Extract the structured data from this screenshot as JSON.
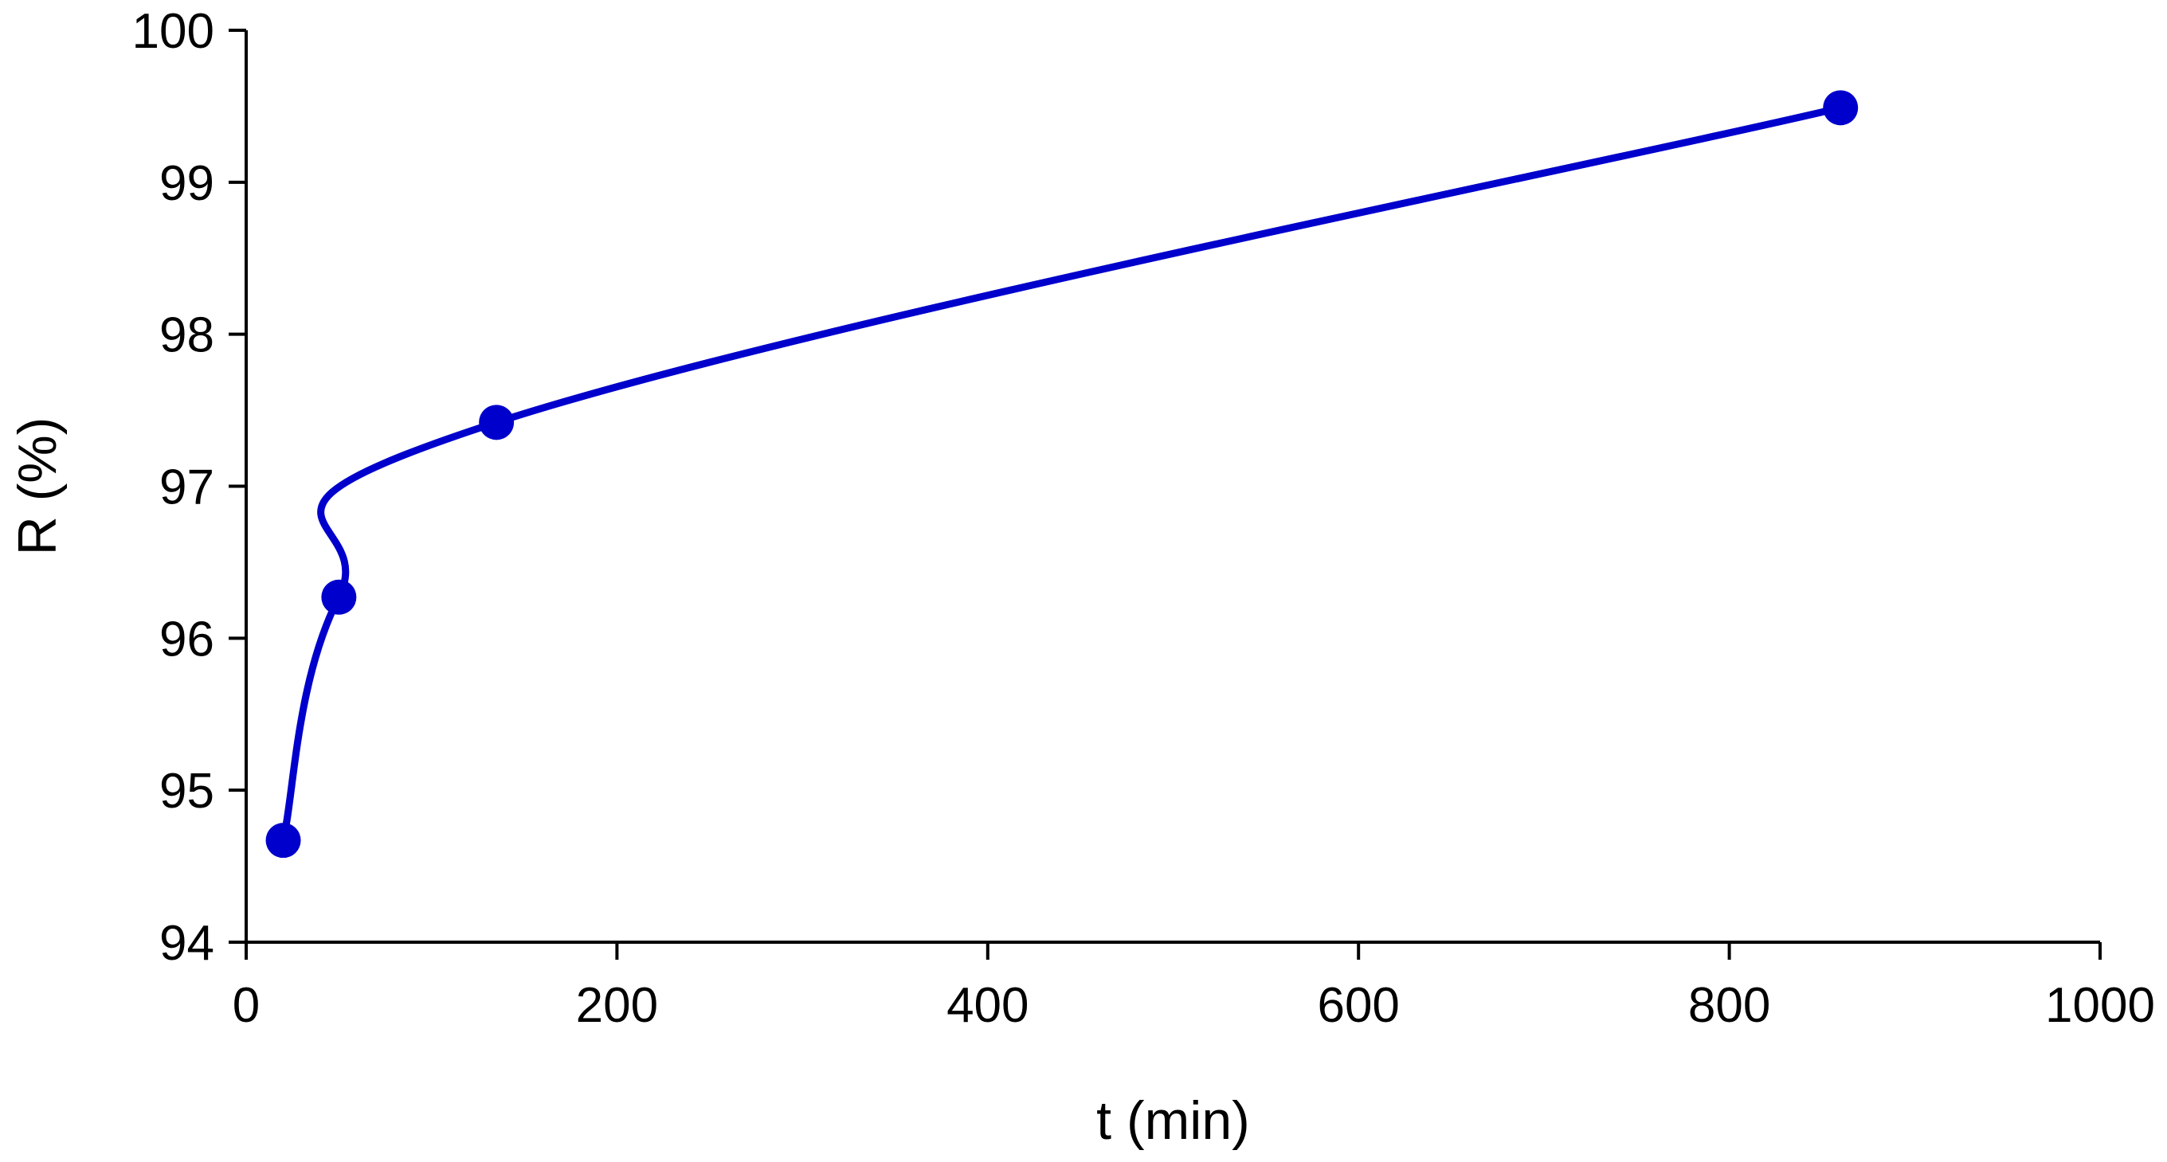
{
  "chart_data": {
    "type": "scatter",
    "title": "",
    "xlabel": "t (min)",
    "ylabel": "R (%)",
    "xlim": [
      0,
      1000
    ],
    "ylim": [
      94,
      100
    ],
    "x_ticks": [
      "0",
      "200",
      "400",
      "600",
      "800",
      "1000"
    ],
    "y_ticks": [
      "94",
      "95",
      "96",
      "97",
      "98",
      "99",
      "100"
    ],
    "grid": false,
    "legend": "none",
    "series": [
      {
        "x": [
          20,
          50,
          135,
          860
        ],
        "y": [
          94.67,
          96.27,
          97.42,
          99.49
        ],
        "color": "#0000CC",
        "marker": "circle",
        "line": "smooth"
      }
    ]
  }
}
